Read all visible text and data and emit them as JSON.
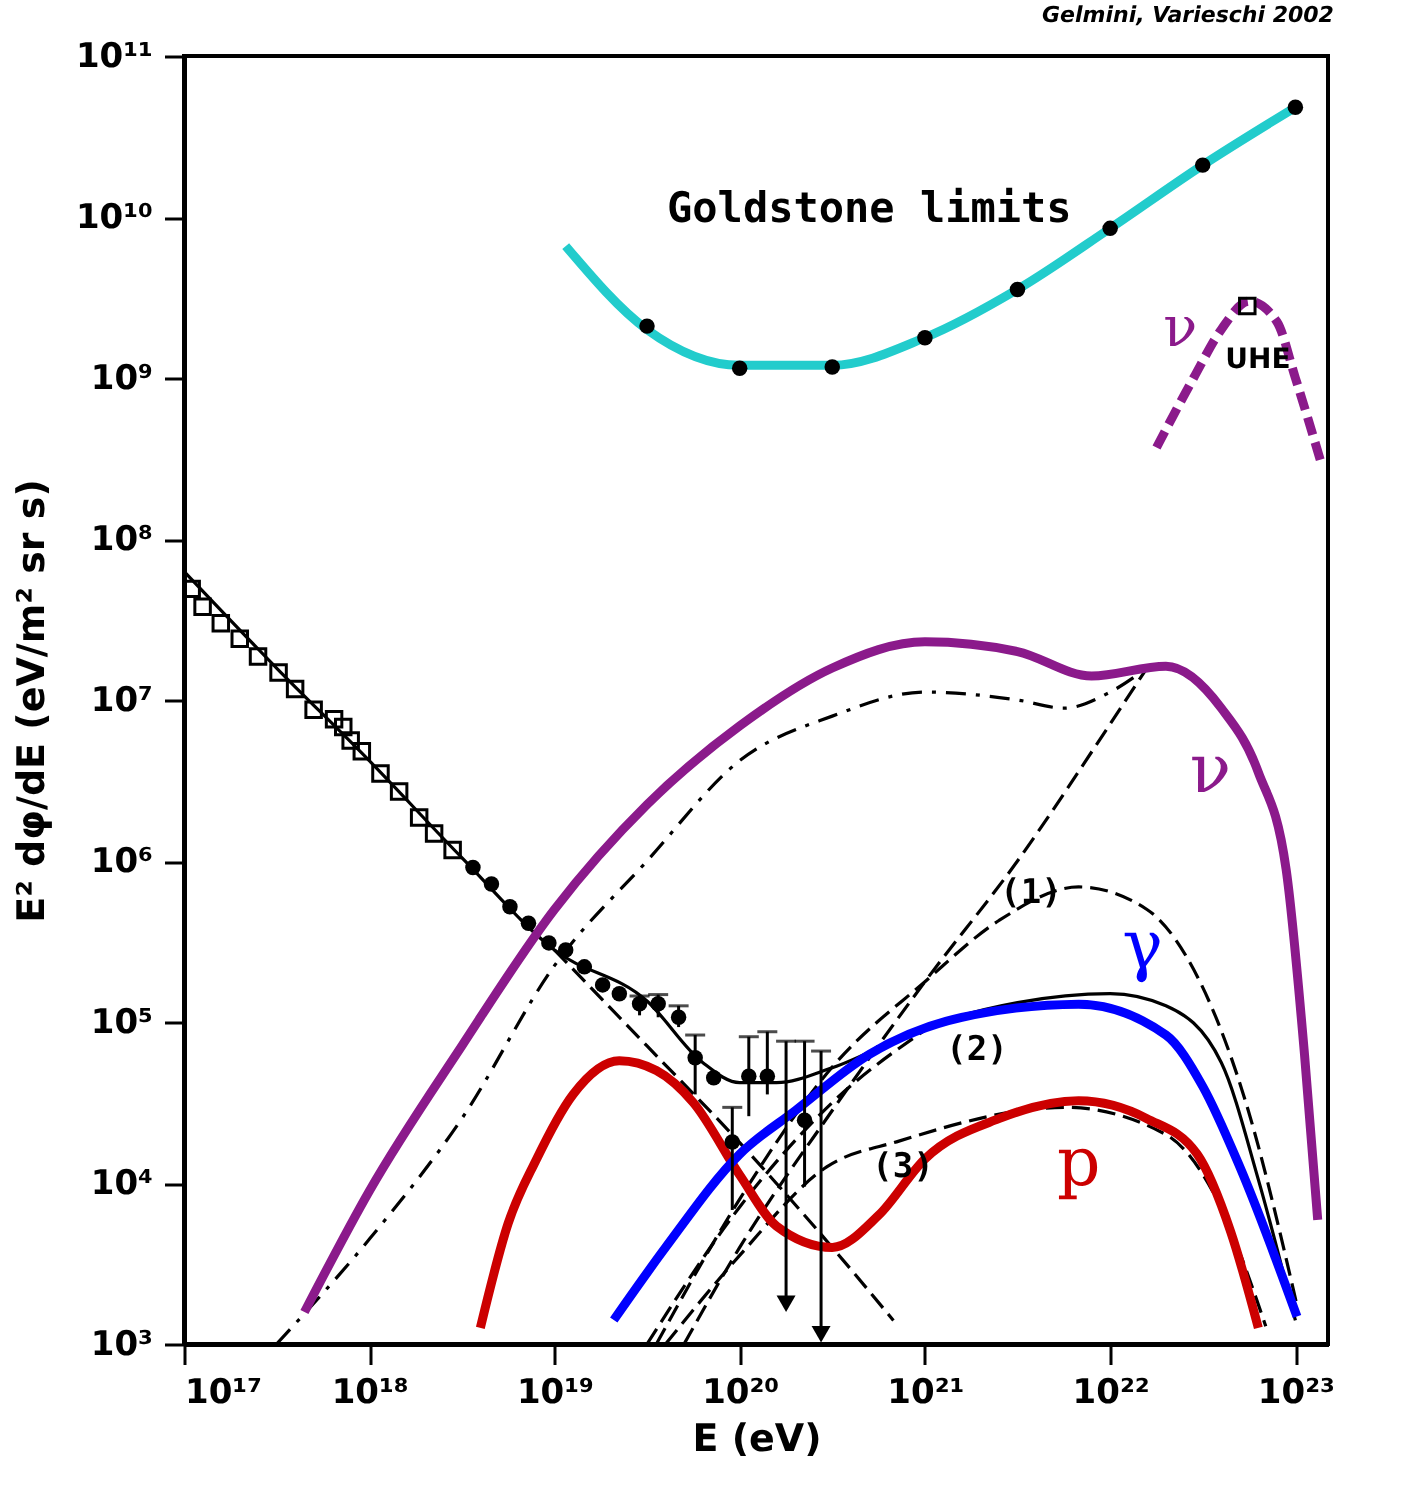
{
  "chart_data": {
    "type": "line",
    "log": "xy",
    "xlabel": "E (eV)",
    "ylabel": "E² dφ/dE (eV/m² sr s)",
    "xlim": [
      1e+17,
      1.5e+23
    ],
    "ylim": [
      1000.0,
      100000000000.0
    ],
    "xticks": [
      {
        "value": 1e+17,
        "label": "10¹⁷"
      },
      {
        "value": 1e+18,
        "label": "10¹⁸"
      },
      {
        "value": 1e+19,
        "label": "10¹⁹"
      },
      {
        "value": 1e+20,
        "label": "10²⁰"
      },
      {
        "value": 1e+21,
        "label": "10²¹"
      },
      {
        "value": 1e+22,
        "label": "10²²"
      },
      {
        "value": 1e+23,
        "label": "10²³"
      }
    ],
    "yticks": [
      {
        "value": 1000.0,
        "label": "10³"
      },
      {
        "value": 10000.0,
        "label": "10⁴"
      },
      {
        "value": 100000.0,
        "label": "10⁵"
      },
      {
        "value": 1000000.0,
        "label": "10⁶"
      },
      {
        "value": 10000000.0,
        "label": "10⁷"
      },
      {
        "value": 100000000.0,
        "label": "10⁸"
      },
      {
        "value": 1000000000.0,
        "label": "10⁹"
      },
      {
        "value": 10000000000.0,
        "label": "10¹⁰"
      },
      {
        "value": 100000000000.0,
        "label": "10¹¹"
      }
    ],
    "series": [
      {
        "color": "#000000",
        "line_style": "solid",
        "x": [
          1e+17,
          3.16e+17,
          1e+18,
          3.16e+18,
          1e+19,
          3.16e+19,
          6.31e+19,
          1e+20,
          1.58e+20,
          3.16e+20,
          1e+21,
          3.16e+21,
          1e+22,
          2e+22,
          3.98e+22,
          6.31e+22,
          1e+23
        ],
        "values": [
          63000000.0,
          15800000.0,
          4200000.0,
          1050000.0,
          280000.0,
          135000.0,
          56000.0,
          42000.0,
          42000.0,
          52000.0,
          93000.0,
          132000.0,
          150000.0,
          126000.0,
          56000.0,
          10500.0,
          1400.0
        ]
      },
      {
        "color": "#000000",
        "line_style": "dashed",
        "x": [
          1e+19,
          3.16e+19,
          1e+20,
          3.16e+20,
          6.76e+20
        ],
        "values": [
          280000.0,
          71000.0,
          17800.0,
          3980.0,
          1400.0
        ]
      },
      {
        "color": "#000000",
        "line_style": "dashed",
        "x": [
          5.01e+19,
          1e+20,
          3.16e+20,
          1e+21,
          3.16e+21,
          1e+22,
          1.58e+22
        ],
        "values": [
          1000.0,
          3980.0,
          28200.0,
          178000.0,
          1000000.0,
          7100000.0,
          15800000.0
        ]
      },
      {
        "color": "#000000",
        "line_style": "dashdot",
        "x": [
          3.16e+17,
          1e+18,
          3.16e+18,
          1e+19,
          3.16e+19,
          1e+20,
          3.16e+20,
          1e+21,
          3.16e+21,
          5.62e+21,
          1e+22,
          1.58e+22
        ],
        "values": [
          1000.0,
          4470.0,
          25100.0,
          224000.0,
          1000000.0,
          4200000.0,
          7940000.0,
          11200000.0,
          10000000.0,
          8900000.0,
          11200000.0,
          15800000.0
        ]
      },
      {
        "name": "(1)",
        "color": "#000000",
        "line_style": "dashed",
        "x": [
          3.55e+19,
          1e+20,
          3.16e+20,
          1e+21,
          2.51e+21,
          6.76e+21,
          1.58e+22,
          2.57e+22,
          5.37e+22,
          1.02e+23
        ],
        "values": [
          1000.0,
          7940.0,
          52500.0,
          178000.0,
          427000.0,
          690000.0,
          500000.0,
          257000.0,
          32400.0,
          1740.0
        ]
      },
      {
        "name": "(2)",
        "color": "#000000",
        "line_style": "dashed",
        "x": [
          3.16e+19,
          1e+20,
          3.16e+20,
          1e+21
        ],
        "values": [
          1000.0,
          7100.0,
          31600.0,
          89000.0
        ]
      },
      {
        "name": "(3)",
        "color": "#000000",
        "line_style": "dashed",
        "x": [
          3.98e+19,
          1e+20,
          2.95e+20,
          7.24e+20,
          5.75e+21,
          2e+22,
          3.8e+22,
          6.92e+22
        ],
        "values": [
          1000.0,
          3550.0,
          12600.0,
          18200.0,
          29500.0,
          20000.0,
          7760.0,
          1290.0
        ]
      },
      {
        "name": "ν",
        "color": "#8b1a8b",
        "line_style": "solid",
        "x": [
          4.47e+17,
          1e+18,
          3.16e+18,
          1e+19,
          3.16e+19,
          1e+20,
          3.16e+20,
          1e+21,
          3.16e+21,
          7.94e+21,
          2e+22,
          3.98e+22,
          6.31e+22,
          8.91e+22,
          1.12e+23,
          1.32e+23
        ],
        "values": [
          1580.0,
          8900.0,
          71000.0,
          500000.0,
          2240000.0,
          6900000.0,
          15800000.0,
          23000000.0,
          20000000.0,
          14100000.0,
          16200000.0,
          8900000.0,
          3550000.0,
          890000.0,
          63000.0,
          5900.0
        ]
      },
      {
        "name": "p",
        "color": "#cc0000",
        "line_style": "solid",
        "x": [
          3.98e+18,
          5.62e+18,
          7.94e+18,
          1.26e+19,
          2.24e+19,
          3.55e+19,
          5.62e+19,
          1e+20,
          1.58e+20,
          3.16e+20,
          5.62e+20,
          1e+21,
          2.51e+21,
          6.76e+21,
          1.58e+22,
          2.95e+22,
          4.47e+22,
          6.31e+22
        ],
        "values": [
          1260.0,
          5600.0,
          13800.0,
          35500.0,
          57500.0,
          50000.0,
          31600.0,
          11200.0,
          5400.0,
          3980.0,
          6300.0,
          14100.0,
          25100.0,
          32400.0,
          25100.0,
          15100.0,
          5000.0,
          1260.0
        ]
      },
      {
        "name": "γ",
        "color": "#0000ff",
        "line_style": "solid",
        "x": [
          2.09e+19,
          3.98e+19,
          1e+20,
          2e+20,
          5.01e+20,
          1.58e+21,
          6.76e+21,
          2e+22,
          3.16e+22,
          5.01e+22,
          1.02e+23
        ],
        "values": [
          1410.0,
          3980.0,
          15100.0,
          28200.0,
          63000.0,
          107000.0,
          129000.0,
          83000.0,
          39800.0,
          12600.0,
          1480.0
        ]
      },
      {
        "color": "#22cccc",
        "line_style": "solid",
        "x": [
          1.15e+19,
          3.16e+19,
          1e+20,
          3.16e+20,
          1e+21,
          3.16e+21,
          1e+22,
          3.16e+22,
          1e+23
        ],
        "values": [
          6600000000.0,
          2000000000.0,
          1200000000.0,
          1200000000.0,
          1780000000.0,
          3550000000.0,
          8500000000.0,
          21000000000.0,
          48000000000.0
        ]
      },
      {
        "name": "ν$_{UHE}$",
        "color": "#8b1a8b",
        "line_style": "dashed",
        "x": [
          1.78e+22,
          2.82e+22,
          3.98e+22,
          5.62e+22,
          7.94e+22,
          1e+23,
          1.38e+23
        ],
        "values": [
          370000000.0,
          1000000000.0,
          2000000000.0,
          3000000000.0,
          2240000000.0,
          1000000000.0,
          295000000.0
        ]
      },
      {
        "name": "Goldstone limits",
        "type": "scatter",
        "marker": "circle",
        "color": "#000000",
        "x": [
          3.16e+19,
          1e+20,
          3.16e+20,
          1e+21,
          3.16e+21,
          1e+22,
          3.16e+22,
          1e+23
        ],
        "values": [
          2100000000.0,
          1150000000.0,
          1170000000.0,
          1780000000.0,
          3550000000.0,
          8500000000.0,
          21000000000.0,
          48000000000.0
        ]
      },
      {
        "type": "scatter",
        "marker": "square",
        "color": "#000000",
        "x": [
          5.5e+22
        ],
        "values": [
          2800000000.0
        ]
      },
      {
        "type": "scatter",
        "marker": "square",
        "color": "#000000",
        "x": [
          1.1e+17,
          1.26e+17,
          1.58e+17,
          2e+17,
          2.51e+17,
          3.24e+17,
          3.98e+17,
          5.01e+17,
          6.46e+17,
          7.24e+17,
          7.94e+17,
          9.12e+17,
          1.15e+18,
          1.45e+18,
          1.86e+18,
          2.24e+18,
          2.82e+18
        ],
        "values": [
          49000000.0,
          38000000.0,
          30000000.0,
          24000000.0,
          18600000.0,
          14800000.0,
          11700000.0,
          8700000.0,
          7600000.0,
          6800000.0,
          5600000.0,
          4800000.0,
          3500000.0,
          2700000.0,
          1860000.0,
          1480000.0,
          1170000.0
        ]
      },
      {
        "type": "scatter",
        "marker": "circle",
        "color": "#000000",
        "x": [
          3.63e+18,
          4.57e+18,
          5.75e+18,
          7.24e+18,
          9.33e+18,
          1.15e+19,
          1.45e+19,
          1.82e+19,
          2.24e+19,
          2.88e+19,
          3.63e+19,
          4.68e+19,
          5.75e+19,
          7.24e+19,
          9.12e+19,
          1.12e+20,
          1.41e+20,
          2.24e+20
        ],
        "values": [
          910000.0,
          720000.0,
          520000.0,
          410000.0,
          310000.0,
          280000.0,
          220000.0,
          170000.0,
          150000.0,
          130000.0,
          130000.0,
          107000.0,
          60000.0,
          45000.0,
          18000.0,
          46000.0,
          46000.0,
          24500.0
        ],
        "errors": [
          null,
          null,
          null,
          null,
          null,
          null,
          null,
          null,
          null,
          [
            110000.0,
            145000.0
          ],
          [
            107000.0,
            148000.0
          ],
          [
            93000.0,
            126000.0
          ],
          [
            35500.0,
            83000.0
          ],
          null,
          [
            6800.0,
            29500.0
          ],
          [
            26000.0,
            81000.0
          ],
          [
            35500.0,
            87000.0
          ],
          [
            9500.0,
            76000.0
          ]
        ]
      },
      {
        "type": "scatter",
        "marker": "triangle",
        "color": "#000000",
        "x": [
          1.78e+20,
          2.75e+20
        ],
        "values": [
          1780.0,
          1150.0
        ],
        "errors": [
          [
            1780.0,
            76000.0
          ],
          [
            1150.0,
            66000.0
          ]
        ]
      }
    ],
    "annotations": [
      "Gelmini, Varieschi 2002"
    ]
  }
}
